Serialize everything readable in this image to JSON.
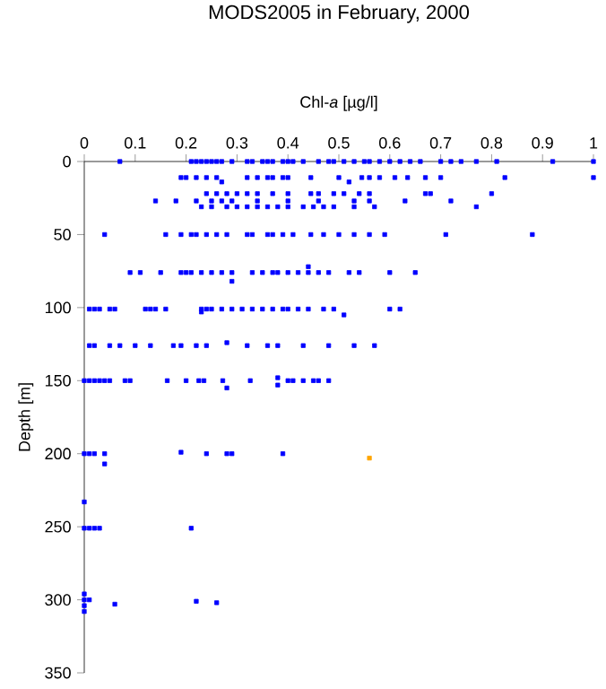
{
  "chart_data": {
    "type": "scatter",
    "title": "MODS2005 in February, 2000",
    "xlabel": "Chl-*a* [µg/l]",
    "ylabel": "Depth [m]",
    "xlim": [
      0,
      1
    ],
    "ylim": [
      350,
      0
    ],
    "xticks": [
      0,
      0.1,
      0.2,
      0.3,
      0.4,
      0.5,
      0.6,
      0.7,
      0.8,
      0.9,
      1
    ],
    "yticks": [
      0,
      50,
      100,
      150,
      200,
      250,
      300,
      350
    ],
    "marker": "square",
    "series": [
      {
        "color": "#0000ff",
        "x": [
          0.07,
          0.21,
          0.22,
          0.23,
          0.24,
          0.25,
          0.26,
          0.27,
          0.29,
          0.32,
          0.33,
          0.35,
          0.36,
          0.37,
          0.39,
          0.4,
          0.41,
          0.43,
          0.46,
          0.48,
          0.49,
          0.51,
          0.53,
          0.55,
          0.56,
          0.58,
          0.6,
          0.62,
          0.64,
          0.66,
          0.7,
          0.72,
          0.74,
          0.77,
          0.81,
          0.92,
          1.0,
          0.19,
          0.2,
          0.22,
          0.24,
          0.26,
          0.27,
          0.32,
          0.34,
          0.36,
          0.37,
          0.39,
          0.4,
          0.445,
          0.5,
          0.52,
          0.545,
          0.56,
          0.58,
          0.61,
          0.635,
          0.67,
          0.7,
          0.826,
          1.0,
          0.24,
          0.26,
          0.28,
          0.3,
          0.32,
          0.34,
          0.37,
          0.4,
          0.445,
          0.46,
          0.49,
          0.51,
          0.54,
          0.56,
          0.67,
          0.68,
          0.8,
          0.14,
          0.18,
          0.22,
          0.25,
          0.27,
          0.29,
          0.34,
          0.4,
          0.46,
          0.53,
          0.56,
          0.63,
          0.72,
          0.23,
          0.25,
          0.28,
          0.3,
          0.32,
          0.34,
          0.36,
          0.38,
          0.4,
          0.43,
          0.45,
          0.47,
          0.49,
          0.53,
          0.57,
          0.77,
          0.04,
          0.16,
          0.19,
          0.21,
          0.22,
          0.24,
          0.26,
          0.28,
          0.32,
          0.33,
          0.36,
          0.37,
          0.39,
          0.41,
          0.445,
          0.47,
          0.5,
          0.53,
          0.56,
          0.59,
          0.71,
          0.88,
          0.44,
          0.09,
          0.11,
          0.15,
          0.19,
          0.2,
          0.21,
          0.23,
          0.25,
          0.27,
          0.29,
          0.33,
          0.35,
          0.37,
          0.38,
          0.4,
          0.42,
          0.44,
          0.46,
          0.48,
          0.52,
          0.54,
          0.6,
          0.65,
          0.29,
          0.01,
          0.02,
          0.03,
          0.05,
          0.06,
          0.12,
          0.13,
          0.14,
          0.16,
          0.23,
          0.24,
          0.25,
          0.27,
          0.29,
          0.31,
          0.33,
          0.35,
          0.37,
          0.39,
          0.4,
          0.42,
          0.44,
          0.47,
          0.49,
          0.6,
          0.62,
          0.51,
          0.23,
          0.01,
          0.02,
          0.05,
          0.07,
          0.1,
          0.13,
          0.175,
          0.19,
          0.22,
          0.24,
          0.28,
          0.32,
          0.36,
          0.38,
          0.43,
          0.48,
          0.53,
          0.57,
          0.0,
          0.01,
          0.02,
          0.03,
          0.04,
          0.05,
          0.08,
          0.09,
          0.163,
          0.2,
          0.225,
          0.235,
          0.272,
          0.326,
          0.38,
          0.38,
          0.4,
          0.41,
          0.43,
          0.45,
          0.46,
          0.48,
          0.28,
          0.0,
          0.01,
          0.02,
          0.04,
          0.19,
          0.24,
          0.28,
          0.29,
          0.39,
          0.04,
          0.0,
          0.0,
          0.01,
          0.02,
          0.03,
          0.21,
          0.0,
          0.0,
          0.0,
          0.0,
          0.01,
          0.06,
          0.22,
          0.26
        ],
        "values": [
          0,
          0,
          0,
          0,
          0,
          0,
          0,
          0,
          0,
          0,
          0,
          0,
          0,
          0,
          0,
          0,
          0,
          0,
          0,
          0,
          0,
          0,
          0,
          0,
          0,
          0,
          0,
          0,
          0,
          0,
          0,
          0,
          0,
          0,
          0,
          0,
          0,
          11,
          11,
          11,
          11,
          11,
          14,
          11,
          11,
          11,
          11,
          11,
          11,
          11,
          11,
          14,
          11,
          11,
          11,
          11,
          11,
          11,
          11,
          11,
          11,
          22,
          22,
          22,
          22,
          22,
          22,
          22,
          22,
          22,
          22,
          22,
          22,
          22,
          22,
          22,
          22,
          22,
          27,
          27,
          27,
          27,
          27,
          27,
          27,
          27,
          27,
          27,
          27,
          27,
          27,
          31,
          31,
          31,
          31,
          31,
          31,
          31,
          31,
          31,
          31,
          31,
          31,
          31,
          31,
          31,
          31,
          50,
          50,
          50,
          50,
          50,
          50,
          50,
          50,
          50,
          50,
          50,
          50,
          50,
          50,
          50,
          50,
          50,
          50,
          50,
          50,
          50,
          50,
          72,
          76,
          76,
          76,
          76,
          76,
          76,
          76,
          76,
          76,
          76,
          76,
          76,
          76,
          76,
          76,
          76,
          76,
          76,
          76,
          76,
          76,
          76,
          76,
          82,
          101,
          101,
          101,
          101,
          101,
          101,
          101,
          101,
          101,
          101,
          101,
          101,
          101,
          101,
          101,
          101,
          101,
          101,
          101,
          101,
          101,
          101,
          101,
          101,
          101,
          101,
          105,
          103,
          126,
          126,
          126,
          126,
          126,
          126,
          126,
          126,
          126,
          126,
          124,
          126,
          126,
          126,
          126,
          126,
          126,
          126,
          150,
          150,
          150,
          150,
          150,
          150,
          150,
          150,
          150,
          150,
          150,
          150,
          150,
          150,
          148,
          153,
          150,
          150,
          150,
          150,
          150,
          150,
          155,
          200,
          200,
          200,
          200,
          199,
          200,
          200,
          200,
          200,
          207,
          233,
          251,
          251,
          251,
          251,
          251,
          296,
          300,
          304,
          308,
          300,
          303,
          301,
          302
        ]
      },
      {
        "color": "#ffa500",
        "x": [
          0.56
        ],
        "values": [
          203
        ]
      }
    ]
  }
}
